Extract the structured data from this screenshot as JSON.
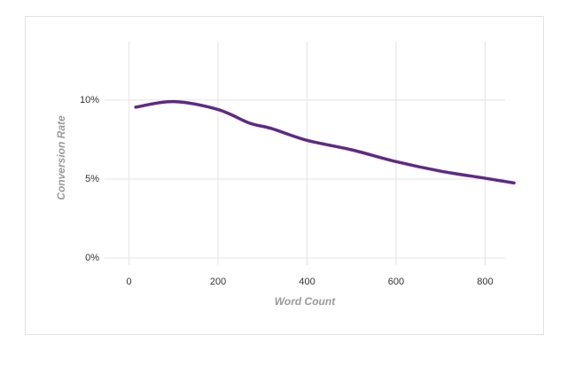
{
  "chart_data": {
    "type": "line",
    "x_label": "Word Count",
    "y_label": "Conversion Rate",
    "xlim": [
      -55,
      845
    ],
    "ylim": [
      0,
      13.7
    ],
    "xticks": [
      0,
      200,
      400,
      600,
      800
    ],
    "yticks": [
      {
        "value": 0,
        "label": "0%"
      },
      {
        "value": 5,
        "label": "5%"
      },
      {
        "value": 10,
        "label": "10%"
      }
    ],
    "grid": true,
    "x": [
      15,
      100,
      200,
      270,
      320,
      400,
      500,
      600,
      700,
      800,
      865
    ],
    "series": [
      {
        "name": "Conversion Rate",
        "color": "#5e2a84",
        "values": [
          9.55,
          9.9,
          9.4,
          8.55,
          8.2,
          7.45,
          6.85,
          6.1,
          5.5,
          5.05,
          4.75
        ]
      }
    ]
  }
}
